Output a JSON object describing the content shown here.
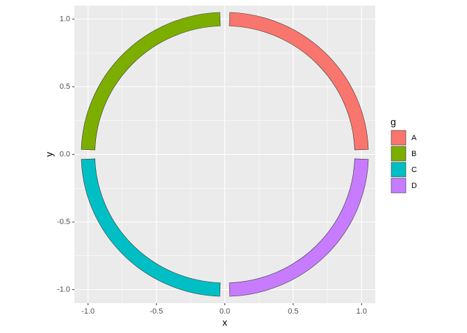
{
  "chart_data": {
    "type": "arc",
    "x_label": "x",
    "y_label": "y",
    "legend_title": "g",
    "r0": 0.95,
    "r": 1.05,
    "series": [
      {
        "name": "A",
        "color": "#F8766D",
        "start": 2,
        "end": 88
      },
      {
        "name": "B",
        "color": "#7CAE00",
        "start": 272,
        "end": 358
      },
      {
        "name": "C",
        "color": "#00BFC4",
        "start": 182,
        "end": 268
      },
      {
        "name": "D",
        "color": "#C77CFF",
        "start": 92,
        "end": 178
      }
    ],
    "xlim": [
      -1.1,
      1.1
    ],
    "ylim": [
      -1.1,
      1.1
    ],
    "xticks": [
      {
        "value": -1,
        "label": "-1.0"
      },
      {
        "value": -0.5,
        "label": "-0.5"
      },
      {
        "value": 0,
        "label": "0.0"
      },
      {
        "value": 0.5,
        "label": "0.5"
      },
      {
        "value": 1,
        "label": "1.0"
      }
    ],
    "yticks": [
      {
        "value": -1,
        "label": "-1.0"
      },
      {
        "value": -0.5,
        "label": "-0.5"
      },
      {
        "value": 0,
        "label": "0.0"
      },
      {
        "value": 0.5,
        "label": "0.5"
      },
      {
        "value": 1,
        "label": "1.0"
      }
    ],
    "grid": true,
    "minor_grid": true
  }
}
